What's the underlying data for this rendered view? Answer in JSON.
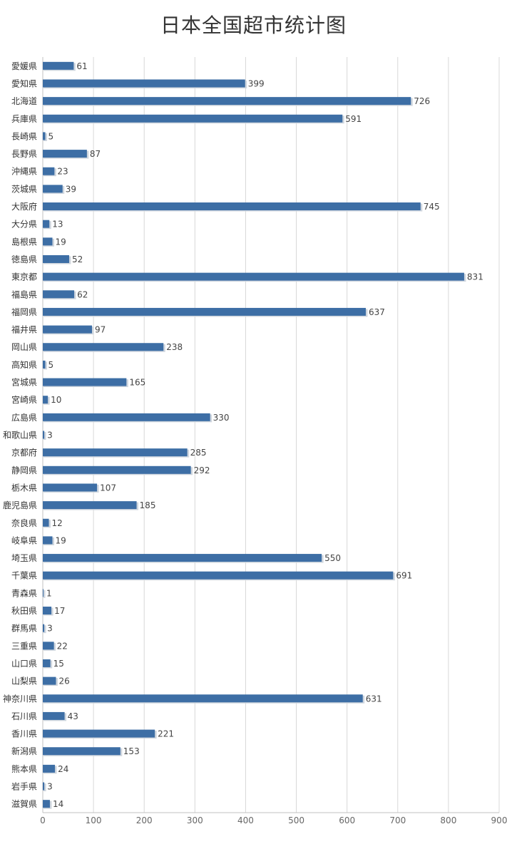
{
  "chart_data": {
    "type": "bar",
    "orientation": "horizontal",
    "title": "日本全国超市统计图",
    "xlabel": "",
    "ylabel": "",
    "xlim": [
      0,
      900
    ],
    "ticks": [
      0,
      100,
      200,
      300,
      400,
      500,
      600,
      700,
      800,
      900
    ],
    "grid": true,
    "bar_color": "#3d6ea5",
    "categories": [
      "愛媛県",
      "愛知県",
      "北海道",
      "兵庫県",
      "長崎県",
      "長野県",
      "沖縄県",
      "茨城県",
      "大阪府",
      "大分県",
      "島根県",
      "徳島県",
      "東京都",
      "福島県",
      "福岡県",
      "福井県",
      "岡山県",
      "高知県",
      "宮城県",
      "宮崎県",
      "広島県",
      "和歌山県",
      "京都府",
      "静岡県",
      "栃木県",
      "鹿児島県",
      "奈良県",
      "岐阜県",
      "埼玉県",
      "千葉県",
      "青森県",
      "秋田県",
      "群馬県",
      "三重県",
      "山口県",
      "山梨県",
      "神奈川県",
      "石川県",
      "香川県",
      "新潟県",
      "熊本県",
      "岩手県",
      "滋賀県"
    ],
    "values": [
      61,
      399,
      726,
      591,
      5,
      87,
      23,
      39,
      745,
      13,
      19,
      52,
      831,
      62,
      637,
      97,
      238,
      5,
      165,
      10,
      330,
      3,
      285,
      292,
      107,
      185,
      12,
      19,
      550,
      691,
      1,
      17,
      3,
      22,
      15,
      26,
      631,
      43,
      221,
      153,
      24,
      3,
      14
    ]
  }
}
